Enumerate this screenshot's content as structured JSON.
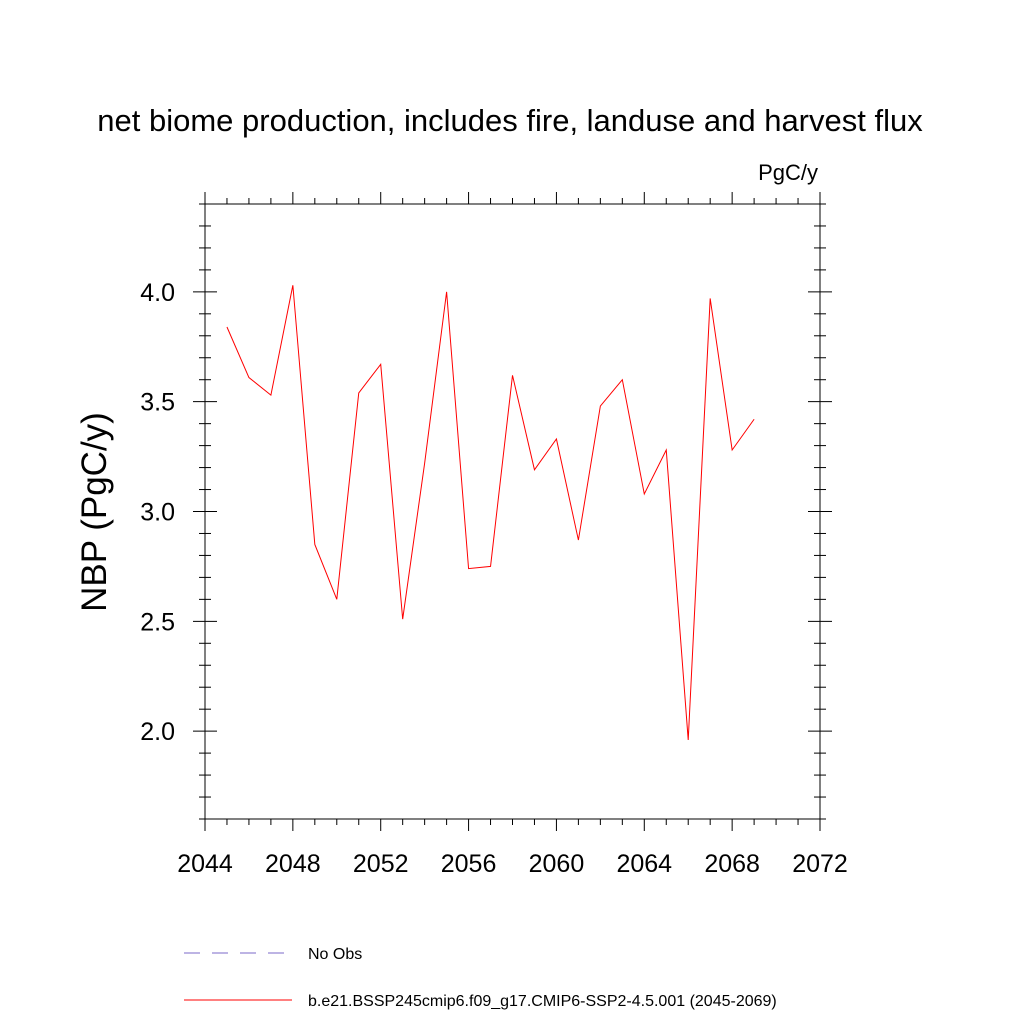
{
  "chart_data": {
    "type": "line",
    "title": "net biome production, includes fire, landuse and harvest flux",
    "units": "PgC/y",
    "xlabel": "",
    "ylabel": "NBP  (PgC/y)",
    "xlim": [
      2044,
      2072
    ],
    "ylim": [
      1.6,
      4.4
    ],
    "xticks": [
      2044,
      2048,
      2052,
      2056,
      2060,
      2064,
      2068,
      2072
    ],
    "xtick_labels": [
      "2044",
      "2048",
      "2052",
      "2056",
      "2060",
      "2064",
      "2068",
      "2072"
    ],
    "yticks": [
      2.0,
      2.5,
      3.0,
      3.5,
      4.0
    ],
    "ytick_labels": [
      "2.0",
      "2.5",
      "3.0",
      "3.5",
      "4.0"
    ],
    "grid": false,
    "legend_position": "bottom",
    "series": [
      {
        "name": "b.e21.BSSP245cmip6.f09_g17.CMIP6-SSP2-4.5.001 (2045-2069)",
        "color": "#ff0000",
        "style": "solid",
        "x": [
          2045,
          2046,
          2047,
          2048,
          2049,
          2050,
          2051,
          2052,
          2053,
          2054,
          2055,
          2056,
          2057,
          2058,
          2059,
          2060,
          2061,
          2062,
          2063,
          2064,
          2065,
          2066,
          2067,
          2068,
          2069
        ],
        "values": [
          3.84,
          3.61,
          3.53,
          4.03,
          2.85,
          2.6,
          3.54,
          3.67,
          2.51,
          3.22,
          4.0,
          2.74,
          2.75,
          3.62,
          3.19,
          3.33,
          2.87,
          3.48,
          3.6,
          3.08,
          3.28,
          1.96,
          3.97,
          3.28,
          3.42
        ]
      }
    ],
    "legend": [
      {
        "label": "No Obs",
        "color": "#7b68c8",
        "style": "dashed"
      },
      {
        "label": "b.e21.BSSP245cmip6.f09_g17.CMIP6-SSP2-4.5.001 (2045-2069)",
        "color": "#ff0000",
        "style": "solid"
      }
    ]
  }
}
